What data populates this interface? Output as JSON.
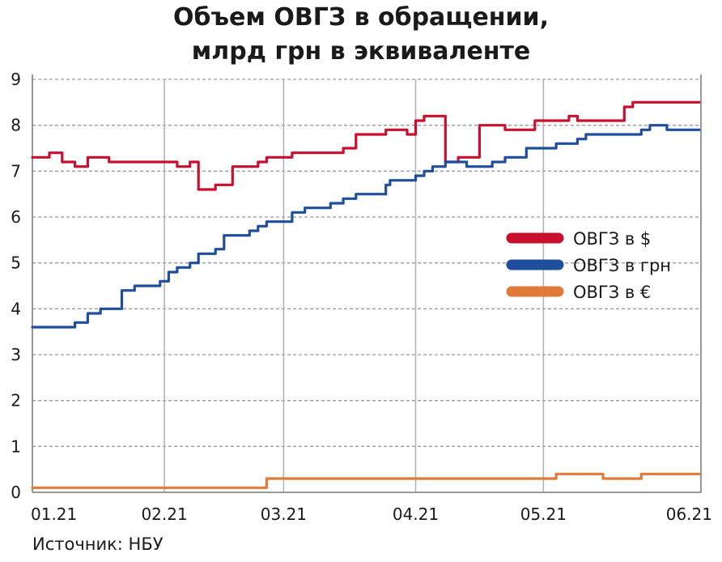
{
  "title_line1": "Объем ОВГЗ в обращении,",
  "title_line2": "млрд грн в эквиваленте",
  "source": "Источник: НБУ",
  "chart_data": {
    "type": "line",
    "xlabel": "",
    "ylabel": "",
    "ylim": [
      0,
      9
    ],
    "yticks": [
      0,
      1,
      2,
      3,
      4,
      5,
      6,
      7,
      8,
      9
    ],
    "xtick_labels": [
      "01.21",
      "02.21",
      "03.21",
      "04.21",
      "05.21",
      "06.21"
    ],
    "grid": true,
    "legend_position": "right",
    "x_dates": [
      "2021-01-01",
      "2021-01-05",
      "2021-01-08",
      "2021-01-11",
      "2021-01-14",
      "2021-01-17",
      "2021-01-19",
      "2021-01-22",
      "2021-01-25",
      "2021-01-28",
      "2021-01-31",
      "2021-02-02",
      "2021-02-04",
      "2021-02-07",
      "2021-02-09",
      "2021-02-11",
      "2021-02-13",
      "2021-02-15",
      "2021-02-17",
      "2021-02-19",
      "2021-02-21",
      "2021-02-23",
      "2021-02-25",
      "2021-02-27",
      "2021-03-01",
      "2021-03-03",
      "2021-03-06",
      "2021-03-09",
      "2021-03-12",
      "2021-03-15",
      "2021-03-18",
      "2021-03-21",
      "2021-03-23",
      "2021-03-25",
      "2021-03-26",
      "2021-03-28",
      "2021-03-30",
      "2021-04-01",
      "2021-04-03",
      "2021-04-05",
      "2021-04-08",
      "2021-04-11",
      "2021-04-13",
      "2021-04-16",
      "2021-04-19",
      "2021-04-22",
      "2021-04-24",
      "2021-04-27",
      "2021-04-29",
      "2021-05-01",
      "2021-05-04",
      "2021-05-07",
      "2021-05-09",
      "2021-05-11",
      "2021-05-13",
      "2021-05-15",
      "2021-05-17",
      "2021-05-20",
      "2021-05-22",
      "2021-05-24",
      "2021-05-26",
      "2021-05-28",
      "2021-05-30",
      "2021-06-01",
      "2021-06-03"
    ],
    "series": [
      {
        "name": "ОВГЗ в $",
        "color": "#c8102e",
        "values": [
          7.3,
          7.4,
          7.2,
          7.1,
          7.3,
          7.3,
          7.2,
          7.2,
          7.2,
          7.2,
          7.2,
          7.2,
          7.1,
          7.2,
          6.6,
          6.6,
          6.7,
          6.7,
          7.1,
          7.1,
          7.1,
          7.2,
          7.3,
          7.3,
          7.3,
          7.4,
          7.4,
          7.4,
          7.4,
          7.5,
          7.8,
          7.8,
          7.8,
          7.9,
          7.9,
          7.9,
          7.8,
          8.1,
          8.2,
          8.2,
          7.2,
          7.3,
          7.3,
          8.0,
          8.0,
          7.9,
          7.9,
          7.9,
          8.1,
          8.1,
          8.1,
          8.2,
          8.1,
          8.1,
          8.1,
          8.1,
          8.1,
          8.4,
          8.5,
          8.5,
          8.5,
          8.5,
          8.5,
          8.5,
          8.5
        ]
      },
      {
        "name": "ОВГЗ в грн",
        "color": "#1f4e9c",
        "values": [
          3.6,
          3.6,
          3.6,
          3.7,
          3.9,
          4.0,
          4.0,
          4.4,
          4.5,
          4.5,
          4.6,
          4.8,
          4.9,
          5.0,
          5.2,
          5.2,
          5.3,
          5.6,
          5.6,
          5.6,
          5.7,
          5.8,
          5.9,
          5.9,
          5.9,
          6.1,
          6.2,
          6.2,
          6.3,
          6.4,
          6.5,
          6.5,
          6.5,
          6.7,
          6.8,
          6.8,
          6.8,
          6.9,
          7.0,
          7.1,
          7.2,
          7.2,
          7.1,
          7.1,
          7.2,
          7.3,
          7.3,
          7.5,
          7.5,
          7.5,
          7.6,
          7.6,
          7.7,
          7.8,
          7.8,
          7.8,
          7.8,
          7.8,
          7.8,
          7.9,
          8.0,
          8.0,
          7.9,
          7.9,
          7.9
        ]
      },
      {
        "name": "ОВГЗ в €",
        "color": "#e07b39",
        "values": [
          0.1,
          0.1,
          0.1,
          0.1,
          0.1,
          0.1,
          0.1,
          0.1,
          0.1,
          0.1,
          0.1,
          0.1,
          0.1,
          0.1,
          0.1,
          0.1,
          0.1,
          0.1,
          0.1,
          0.1,
          0.1,
          0.1,
          0.3,
          0.3,
          0.3,
          0.3,
          0.3,
          0.3,
          0.3,
          0.3,
          0.3,
          0.3,
          0.3,
          0.3,
          0.3,
          0.3,
          0.3,
          0.3,
          0.3,
          0.3,
          0.3,
          0.3,
          0.3,
          0.3,
          0.3,
          0.3,
          0.3,
          0.3,
          0.3,
          0.3,
          0.4,
          0.4,
          0.4,
          0.4,
          0.4,
          0.3,
          0.3,
          0.3,
          0.3,
          0.4,
          0.4,
          0.4,
          0.4,
          0.4,
          0.4
        ]
      }
    ]
  }
}
